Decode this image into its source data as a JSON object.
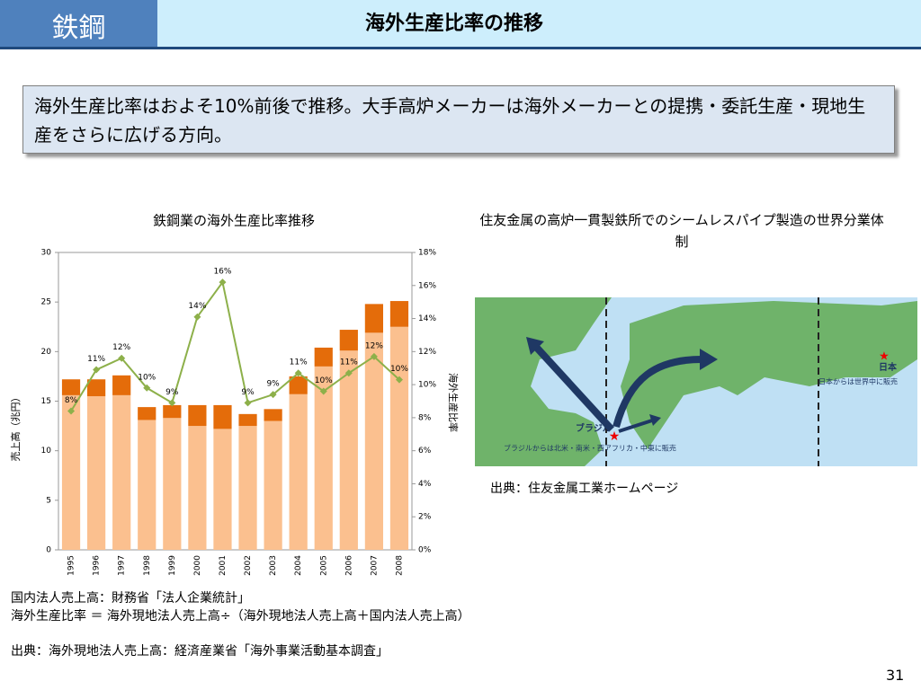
{
  "header": {
    "section": "鉄鋼",
    "title": "海外生産比率の推移"
  },
  "summary": "海外生産比率はおよそ10%前後で推移。大手高炉メーカーは海外メーカーとの提携・委託生産・現地生産をさらに広げる方向。",
  "chart_data": {
    "type": "bar",
    "title": "鉄鋼業の海外生産比率推移",
    "ylabel": "売上高（兆円）",
    "y2label": "海外生産比率",
    "categories": [
      "1995",
      "1996",
      "1997",
      "1998",
      "1999",
      "2000",
      "2001",
      "2002",
      "2003",
      "2004",
      "2005",
      "2006",
      "2007",
      "2008"
    ],
    "stacked": true,
    "series": [
      {
        "color": "#fbc08f",
        "values": [
          15.6,
          15.5,
          15.6,
          13.1,
          13.3,
          12.5,
          12.2,
          12.5,
          13.0,
          15.7,
          18.5,
          20.1,
          21.9,
          22.5
        ]
      },
      {
        "color": "#e46c0a",
        "values": [
          1.6,
          1.7,
          2.0,
          1.3,
          1.3,
          2.1,
          2.4,
          1.2,
          1.2,
          1.8,
          1.9,
          2.1,
          2.9,
          2.6
        ]
      },
      {
        "type": "line",
        "axis": "y2",
        "color": "#8db04a",
        "values": [
          8.4,
          10.9,
          11.6,
          9.8,
          8.9,
          14.1,
          16.2,
          8.9,
          9.4,
          10.7,
          9.6,
          10.7,
          11.7,
          10.3
        ],
        "value_labels": [
          "8%",
          "11%",
          "12%",
          "10%",
          "9%",
          "14%",
          "16%",
          "9%",
          "9%",
          "11%",
          "10%",
          "11%",
          "12%",
          "10%"
        ]
      }
    ],
    "ylim": [
      0,
      30
    ],
    "yticks": [
      0,
      5,
      10,
      15,
      20,
      25,
      30
    ],
    "y2lim": [
      0,
      18
    ],
    "y2ticks": [
      {
        "value": 0,
        "label": "0%"
      },
      {
        "value": 2,
        "label": "2%"
      },
      {
        "value": 4,
        "label": "4%"
      },
      {
        "value": 6,
        "label": "6%"
      },
      {
        "value": 8,
        "label": "8%"
      },
      {
        "value": 10,
        "label": "10%"
      },
      {
        "value": 12,
        "label": "12%"
      },
      {
        "value": 14,
        "label": "14%"
      },
      {
        "value": 16,
        "label": "16%"
      },
      {
        "value": 18,
        "label": "18%"
      }
    ]
  },
  "map": {
    "title": "住友金属の高炉一貫製鉄所でのシームレスパイプ製造の世界分業体制",
    "brazil": "ブラジル",
    "brazil_note": "ブラジルからは北米・南米・西アフリカ・中東に販売",
    "japan": "日本",
    "japan_note": "日本からは世界中に販売",
    "source": "出典：住友金属工業ホームページ"
  },
  "notes": [
    "国内法人売上高：財務省「法人企業統計」",
    "海外生産比率 ＝ 海外現地法人売上高÷（海外現地法人売上高＋国内法人売上高）",
    "出典：海外現地法人売上高：経済産業省「海外事業活動基本調査」"
  ],
  "page": "31"
}
